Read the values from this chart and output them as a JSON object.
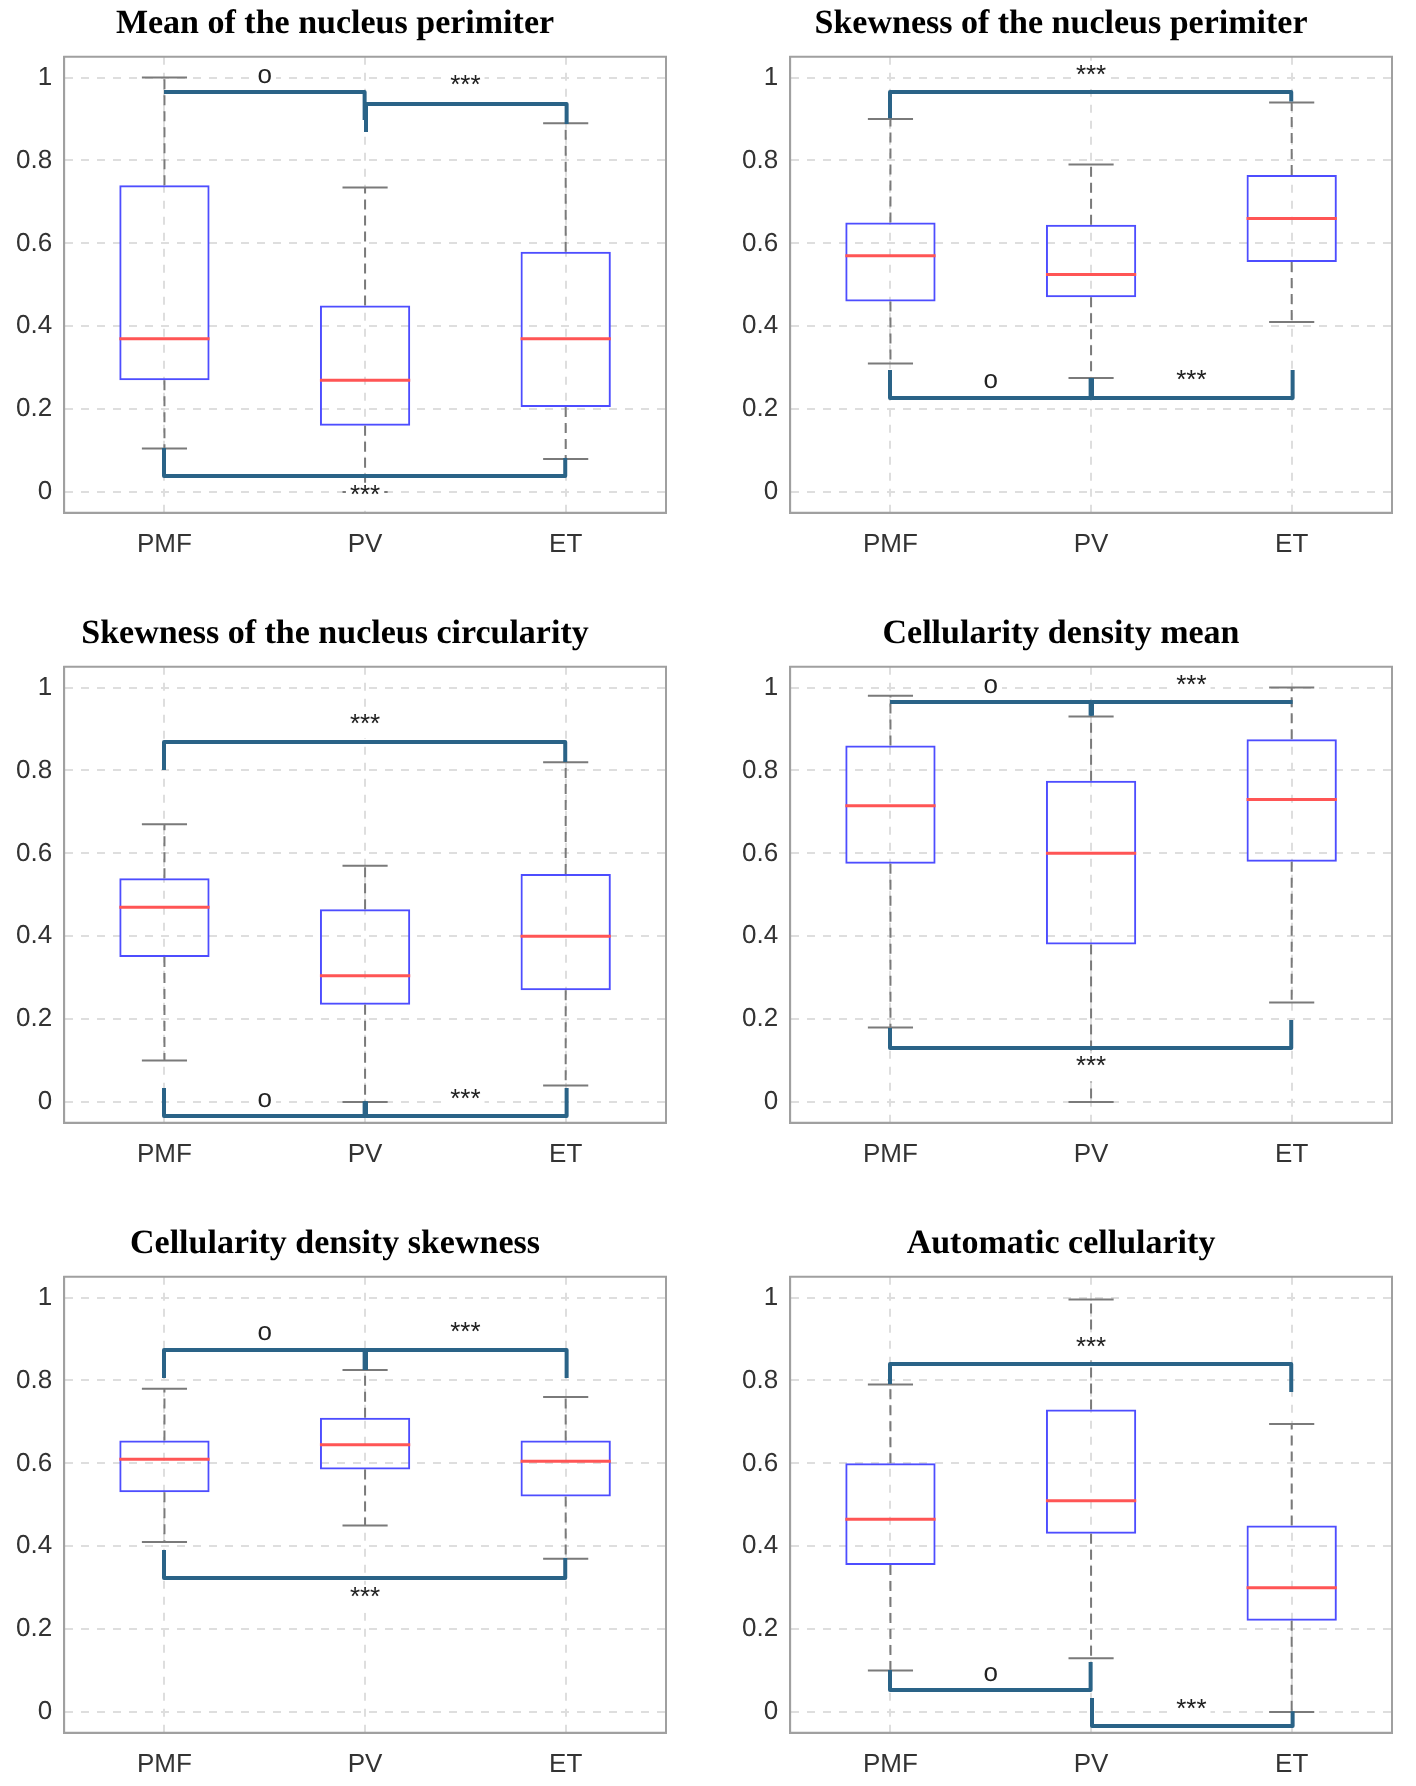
{
  "chart_data": [
    {
      "type": "box",
      "title": "Mean of the nucleus perimiter",
      "categories": [
        "PMF",
        "PV",
        "ET"
      ],
      "ylim": [
        -0.05,
        1.05
      ],
      "yticks": [
        0,
        0.2,
        0.4,
        0.6,
        0.8,
        1
      ],
      "grid": true,
      "series": [
        {
          "color": "#4d4dff",
          "boxes": [
            {
              "low": 0.105,
              "q1": 0.27,
              "median": 0.37,
              "q3": 0.74,
              "high": 1.0
            },
            {
              "low": 0.0,
              "q1": 0.16,
              "median": 0.27,
              "q3": 0.45,
              "high": 0.735
            },
            {
              "low": 0.08,
              "q1": 0.205,
              "median": 0.37,
              "q3": 0.58,
              "high": 0.89
            }
          ]
        }
      ],
      "annotations": [
        "o",
        "***",
        "***"
      ]
    },
    {
      "type": "box",
      "title": "Skewness of the nucleus perimiter",
      "categories": [
        "PMF",
        "PV",
        "ET"
      ],
      "ylim": [
        -0.05,
        1.05
      ],
      "yticks": [
        0,
        0.2,
        0.4,
        0.6,
        0.8,
        1
      ],
      "grid": true,
      "series": [
        {
          "color": "#4d4dff",
          "boxes": [
            {
              "low": 0.31,
              "q1": 0.46,
              "median": 0.57,
              "q3": 0.65,
              "high": 0.9
            },
            {
              "low": 0.275,
              "q1": 0.47,
              "median": 0.525,
              "q3": 0.645,
              "high": 0.79
            },
            {
              "low": 0.41,
              "q1": 0.555,
              "median": 0.66,
              "q3": 0.765,
              "high": 0.94
            }
          ]
        }
      ],
      "annotations": [
        "***",
        "o",
        "***"
      ]
    },
    {
      "type": "box",
      "title": "Skewness of the nucleus circularity",
      "categories": [
        "PMF",
        "PV",
        "ET"
      ],
      "ylim": [
        -0.05,
        1.05
      ],
      "yticks": [
        0,
        0.2,
        0.4,
        0.6,
        0.8,
        1
      ],
      "grid": true,
      "series": [
        {
          "color": "#4d4dff",
          "boxes": [
            {
              "low": 0.1,
              "q1": 0.35,
              "median": 0.47,
              "q3": 0.54,
              "high": 0.67
            },
            {
              "low": 0.0,
              "q1": 0.235,
              "median": 0.305,
              "q3": 0.465,
              "high": 0.57
            },
            {
              "low": 0.04,
              "q1": 0.27,
              "median": 0.4,
              "q3": 0.55,
              "high": 0.82
            }
          ]
        }
      ],
      "annotations": [
        "***",
        "o",
        "***"
      ]
    },
    {
      "type": "box",
      "title": "Cellularity density mean",
      "categories": [
        "PMF",
        "PV",
        "ET"
      ],
      "ylim": [
        -0.05,
        1.05
      ],
      "yticks": [
        0,
        0.2,
        0.4,
        0.6,
        0.8,
        1
      ],
      "grid": true,
      "series": [
        {
          "color": "#4d4dff",
          "boxes": [
            {
              "low": 0.18,
              "q1": 0.575,
              "median": 0.715,
              "q3": 0.86,
              "high": 0.98
            },
            {
              "low": 0.0,
              "q1": 0.38,
              "median": 0.6,
              "q3": 0.775,
              "high": 0.93
            },
            {
              "low": 0.24,
              "q1": 0.58,
              "median": 0.73,
              "q3": 0.875,
              "high": 1.0
            }
          ]
        }
      ],
      "annotations": [
        "o",
        "***",
        "***"
      ]
    },
    {
      "type": "box",
      "title": "Cellularity density skewness",
      "categories": [
        "PMF",
        "PV",
        "ET"
      ],
      "ylim": [
        -0.05,
        1.05
      ],
      "yticks": [
        0,
        0.2,
        0.4,
        0.6,
        0.8,
        1
      ],
      "grid": true,
      "series": [
        {
          "color": "#4d4dff",
          "boxes": [
            {
              "low": 0.41,
              "q1": 0.53,
              "median": 0.61,
              "q3": 0.655,
              "high": 0.78
            },
            {
              "low": 0.45,
              "q1": 0.585,
              "median": 0.645,
              "q3": 0.71,
              "high": 0.825
            },
            {
              "low": 0.37,
              "q1": 0.52,
              "median": 0.605,
              "q3": 0.655,
              "high": 0.76
            }
          ]
        }
      ],
      "annotations": [
        "o",
        "***",
        "***"
      ]
    },
    {
      "type": "box",
      "title": "Automatic cellularity",
      "categories": [
        "PMF",
        "PV",
        "ET"
      ],
      "ylim": [
        -0.05,
        1.05
      ],
      "yticks": [
        0,
        0.2,
        0.4,
        0.6,
        0.8,
        1
      ],
      "grid": true,
      "series": [
        {
          "color": "#4d4dff",
          "boxes": [
            {
              "low": 0.1,
              "q1": 0.355,
              "median": 0.465,
              "q3": 0.6,
              "high": 0.79
            },
            {
              "low": 0.13,
              "q1": 0.43,
              "median": 0.51,
              "q3": 0.73,
              "high": 0.995
            },
            {
              "low": 0.0,
              "q1": 0.22,
              "median": 0.3,
              "q3": 0.45,
              "high": 0.695
            }
          ]
        }
      ],
      "annotations": [
        "***",
        "o",
        "***"
      ]
    }
  ]
}
